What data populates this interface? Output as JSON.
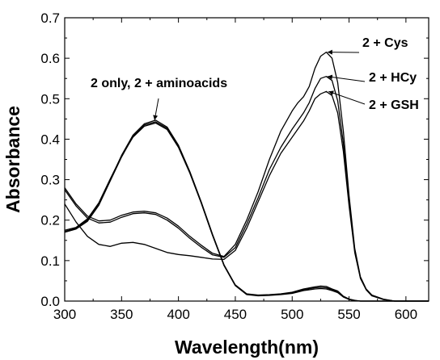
{
  "chart_data": {
    "type": "line",
    "title": "",
    "xlabel": "Wavelength(nm)",
    "ylabel": "Absorbance",
    "xlim": [
      300,
      620
    ],
    "ylim": [
      0.0,
      0.7
    ],
    "xticks": [
      300,
      350,
      400,
      450,
      500,
      550,
      600
    ],
    "yticks": [
      0.0,
      0.1,
      0.2,
      0.3,
      0.4,
      0.5,
      0.6,
      0.7
    ],
    "xtick_labels": [
      "300",
      "350",
      "400",
      "450",
      "500",
      "550",
      "600"
    ],
    "ytick_labels": [
      "0.0",
      "0.1",
      "0.2",
      "0.3",
      "0.4",
      "0.5",
      "0.6",
      "0.7"
    ],
    "grid": false,
    "annotations": [
      {
        "text": "2 only, 2 + aminoacids",
        "target": [
          379,
          0.447
        ]
      },
      {
        "text": "2 + Cys",
        "target": [
          531,
          0.615
        ]
      },
      {
        "text": "2 + HCy",
        "target": [
          531,
          0.555
        ]
      },
      {
        "text": "2 + GSH",
        "target": [
          532,
          0.518
        ]
      }
    ],
    "series": [
      {
        "x": [
          300,
          310,
          320,
          330,
          340,
          350,
          360,
          370,
          380,
          390,
          400,
          410,
          420,
          430,
          440,
          450,
          460,
          470,
          480,
          490,
          500,
          510,
          520,
          525,
          530,
          535,
          540,
          545,
          550,
          555,
          560,
          570,
          580,
          590,
          600,
          610,
          620
        ],
        "y": [
          0.172,
          0.18,
          0.2,
          0.24,
          0.3,
          0.36,
          0.41,
          0.438,
          0.447,
          0.43,
          0.385,
          0.32,
          0.245,
          0.165,
          0.09,
          0.04,
          0.018,
          0.015,
          0.016,
          0.018,
          0.022,
          0.03,
          0.035,
          0.037,
          0.036,
          0.03,
          0.025,
          0.012,
          0.005,
          0.002,
          0.0,
          0.0,
          0.0,
          0.0,
          0.0,
          0.0,
          0.0
        ]
      },
      {
        "x": [
          300,
          310,
          320,
          330,
          340,
          350,
          360,
          370,
          380,
          390,
          400,
          410,
          420,
          430,
          440,
          450,
          460,
          470,
          480,
          490,
          500,
          510,
          520,
          525,
          530,
          535,
          540,
          545,
          550,
          555,
          560,
          570,
          580,
          590,
          600,
          610,
          620
        ],
        "y": [
          0.175,
          0.182,
          0.203,
          0.243,
          0.302,
          0.358,
          0.405,
          0.432,
          0.44,
          0.424,
          0.38,
          0.316,
          0.242,
          0.162,
          0.088,
          0.038,
          0.016,
          0.013,
          0.014,
          0.016,
          0.019,
          0.026,
          0.03,
          0.031,
          0.03,
          0.026,
          0.021,
          0.01,
          0.004,
          0.001,
          0.0,
          0.0,
          0.0,
          0.0,
          0.0,
          0.0,
          0.0
        ]
      },
      {
        "x": [
          300,
          310,
          320,
          330,
          340,
          350,
          360,
          370,
          380,
          390,
          400,
          410,
          420,
          430,
          440,
          450,
          460,
          470,
          480,
          490,
          500,
          510,
          520,
          525,
          530,
          535,
          540,
          545,
          550,
          555,
          560,
          570,
          580,
          590,
          600,
          610,
          620
        ],
        "y": [
          0.17,
          0.178,
          0.197,
          0.237,
          0.297,
          0.356,
          0.407,
          0.435,
          0.443,
          0.427,
          0.382,
          0.318,
          0.243,
          0.163,
          0.089,
          0.039,
          0.017,
          0.014,
          0.015,
          0.017,
          0.02,
          0.028,
          0.033,
          0.034,
          0.033,
          0.028,
          0.023,
          0.011,
          0.004,
          0.001,
          0.0,
          0.0,
          0.0,
          0.0,
          0.0,
          0.0,
          0.0
        ]
      },
      {
        "x": [
          300,
          310,
          320,
          330,
          340,
          350,
          360,
          370,
          380,
          390,
          400,
          410,
          420,
          430,
          440,
          450,
          460,
          470,
          480,
          490,
          500,
          505,
          510,
          515,
          520,
          525,
          530,
          535,
          540,
          545,
          550,
          555,
          560,
          565,
          570,
          580,
          590,
          600,
          610,
          620
        ],
        "y": [
          0.28,
          0.24,
          0.21,
          0.198,
          0.2,
          0.212,
          0.22,
          0.222,
          0.218,
          0.205,
          0.185,
          0.16,
          0.138,
          0.118,
          0.11,
          0.14,
          0.2,
          0.27,
          0.35,
          0.42,
          0.47,
          0.49,
          0.505,
          0.53,
          0.575,
          0.605,
          0.615,
          0.6,
          0.54,
          0.42,
          0.26,
          0.13,
          0.06,
          0.03,
          0.015,
          0.005,
          0.0,
          0.0,
          0.0,
          0.0
        ]
      },
      {
        "x": [
          300,
          310,
          320,
          330,
          340,
          350,
          360,
          370,
          380,
          390,
          400,
          410,
          420,
          430,
          440,
          450,
          460,
          470,
          480,
          490,
          500,
          505,
          510,
          515,
          520,
          525,
          530,
          535,
          540,
          545,
          550,
          555,
          560,
          565,
          570,
          580,
          590,
          600,
          610,
          620
        ],
        "y": [
          0.275,
          0.235,
          0.205,
          0.193,
          0.195,
          0.207,
          0.216,
          0.218,
          0.214,
          0.2,
          0.18,
          0.155,
          0.133,
          0.114,
          0.108,
          0.132,
          0.19,
          0.255,
          0.325,
          0.38,
          0.425,
          0.445,
          0.465,
          0.49,
          0.525,
          0.55,
          0.555,
          0.545,
          0.495,
          0.39,
          0.245,
          0.125,
          0.058,
          0.029,
          0.014,
          0.004,
          0.0,
          0.0,
          0.0,
          0.0
        ]
      },
      {
        "x": [
          300,
          310,
          320,
          330,
          340,
          350,
          360,
          370,
          380,
          390,
          400,
          410,
          420,
          430,
          440,
          450,
          460,
          470,
          480,
          490,
          500,
          505,
          510,
          515,
          520,
          525,
          530,
          535,
          540,
          545,
          550,
          555,
          560,
          565,
          570,
          580,
          590,
          600,
          610,
          620
        ],
        "y": [
          0.24,
          0.195,
          0.16,
          0.14,
          0.135,
          0.143,
          0.145,
          0.14,
          0.13,
          0.12,
          0.115,
          0.112,
          0.108,
          0.104,
          0.103,
          0.125,
          0.18,
          0.245,
          0.31,
          0.365,
          0.405,
          0.425,
          0.445,
          0.47,
          0.5,
          0.512,
          0.518,
          0.508,
          0.465,
          0.37,
          0.235,
          0.12,
          0.056,
          0.028,
          0.013,
          0.004,
          0.0,
          0.0,
          0.0,
          0.0
        ]
      }
    ]
  }
}
